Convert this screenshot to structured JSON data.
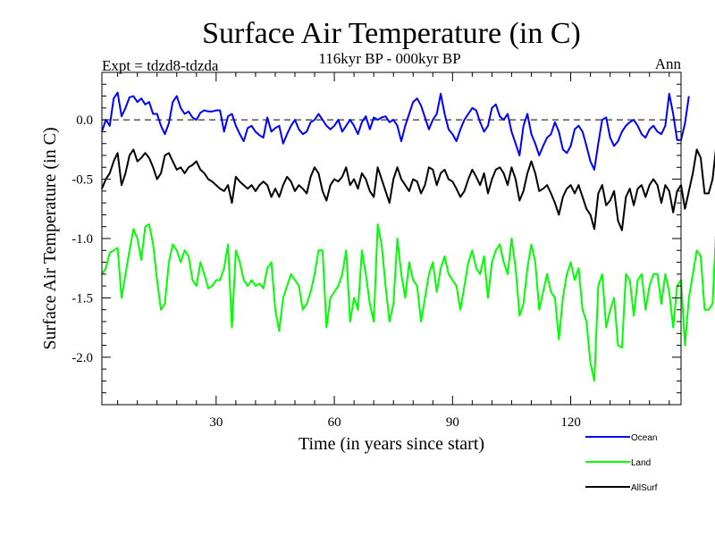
{
  "chart_data": {
    "type": "line",
    "title": "Surface Air Temperature (in C)",
    "subtitle": "116kyr BP - 000kyr BP",
    "experiment": "Expt = tdzd8-tdzda",
    "season": "Ann",
    "xlabel": "Time (in years since start)",
    "ylabel": "Surface Air Temperature (in C)",
    "xlim": [
      1,
      148
    ],
    "ylim": [
      -2.4,
      0.4
    ],
    "xticks": [
      30,
      60,
      90,
      120
    ],
    "yticks": [
      0.0,
      -0.5,
      -1.0,
      -1.5,
      -2.0
    ],
    "xtick_labels": [
      "30",
      "60",
      "90",
      "120"
    ],
    "ytick_labels": [
      "0.0",
      "-0.5",
      "-1.0",
      "-1.5",
      "-2.0"
    ],
    "reference_line": 0.0,
    "x_start": 1,
    "x_step": 1,
    "series": [
      {
        "name": "Ocean",
        "color": "#0000ff",
        "values": [
          -0.1,
          0.0,
          -0.05,
          0.18,
          0.23,
          0.03,
          0.1,
          0.19,
          0.2,
          0.15,
          0.18,
          0.13,
          0.15,
          0.05,
          0.05,
          -0.05,
          -0.12,
          -0.03,
          0.15,
          0.2,
          0.1,
          0.05,
          0.07,
          0.02,
          0.0,
          0.06,
          0.08,
          0.07,
          0.07,
          0.08,
          0.08,
          -0.1,
          0.03,
          0.05,
          -0.05,
          -0.12,
          -0.18,
          -0.07,
          -0.05,
          -0.1,
          -0.13,
          -0.15,
          0.02,
          -0.1,
          -0.07,
          -0.05,
          -0.2,
          -0.12,
          -0.05,
          0.0,
          -0.08,
          -0.12,
          -0.1,
          -0.02,
          0.0,
          0.05,
          0.0,
          -0.05,
          -0.08,
          -0.05,
          0.0,
          -0.1,
          -0.05,
          0.0,
          -0.05,
          -0.12,
          -0.02,
          0.03,
          -0.08,
          0.02,
          0.0,
          0.02,
          0.03,
          -0.02,
          0.0,
          -0.05,
          -0.18,
          -0.05,
          0.05,
          0.15,
          0.18,
          0.12,
          0.02,
          -0.08,
          0.0,
          0.05,
          0.22,
          0.05,
          -0.08,
          -0.12,
          -0.18,
          -0.08,
          0.0,
          0.05,
          0.1,
          0.08,
          -0.02,
          -0.1,
          -0.05,
          0.1,
          0.13,
          0.03,
          0.0,
          0.05,
          -0.1,
          -0.2,
          -0.3,
          -0.05,
          0.05,
          -0.12,
          -0.2,
          -0.3,
          -0.22,
          -0.15,
          -0.12,
          -0.02,
          -0.1,
          -0.25,
          -0.28,
          -0.22,
          -0.08,
          -0.05,
          -0.1,
          -0.22,
          -0.35,
          -0.42,
          -0.2,
          0.0,
          0.02,
          -0.15,
          -0.22,
          -0.18,
          -0.1,
          -0.05,
          -0.02,
          0.0,
          -0.05,
          -0.12,
          -0.15,
          -0.08,
          -0.05,
          -0.1,
          -0.12,
          -0.05,
          0.22,
          0.05,
          -0.17,
          -0.17,
          -0.03,
          0.2
        ]
      },
      {
        "name": "Land",
        "color": "#00ff00",
        "values": [
          -1.3,
          -1.25,
          -1.12,
          -1.1,
          -1.08,
          -1.5,
          -1.3,
          -1.1,
          -0.92,
          -1.0,
          -1.18,
          -0.9,
          -0.88,
          -1.05,
          -1.35,
          -1.6,
          -1.55,
          -1.2,
          -1.05,
          -1.1,
          -1.2,
          -1.1,
          -1.15,
          -1.35,
          -1.4,
          -1.2,
          -1.3,
          -1.42,
          -1.4,
          -1.35,
          -1.35,
          -1.25,
          -1.05,
          -1.75,
          -1.1,
          -1.2,
          -1.35,
          -1.4,
          -1.35,
          -1.4,
          -1.38,
          -1.42,
          -1.25,
          -1.2,
          -1.6,
          -1.78,
          -1.5,
          -1.4,
          -1.3,
          -1.35,
          -1.4,
          -1.6,
          -1.55,
          -1.45,
          -1.3,
          -1.1,
          -1.1,
          -1.75,
          -1.5,
          -1.45,
          -1.4,
          -1.3,
          -1.1,
          -1.7,
          -1.5,
          -1.6,
          -1.1,
          -1.3,
          -1.55,
          -1.7,
          -0.88,
          -1.05,
          -1.4,
          -1.7,
          -1.55,
          -1.0,
          -1.3,
          -1.5,
          -1.2,
          -1.35,
          -1.4,
          -1.7,
          -1.5,
          -1.3,
          -1.2,
          -1.45,
          -1.25,
          -1.15,
          -1.3,
          -1.35,
          -1.4,
          -1.6,
          -1.4,
          -1.2,
          -1.1,
          -1.25,
          -1.3,
          -1.15,
          -1.5,
          -1.2,
          -1.1,
          -1.05,
          -1.2,
          -1.3,
          -1.0,
          -1.25,
          -1.65,
          -1.55,
          -1.25,
          -1.05,
          -1.2,
          -1.6,
          -1.45,
          -1.3,
          -1.45,
          -1.5,
          -1.85,
          -1.5,
          -1.3,
          -1.2,
          -1.35,
          -1.25,
          -1.6,
          -1.7,
          -2.05,
          -2.2,
          -1.4,
          -1.3,
          -1.75,
          -1.6,
          -1.5,
          -1.9,
          -1.92,
          -1.3,
          -1.35,
          -1.65,
          -1.35,
          -1.3,
          -1.6,
          -1.4,
          -1.3,
          -1.3,
          -1.55,
          -1.3,
          -1.45,
          -1.75,
          -1.4,
          -1.35,
          -1.9,
          -1.5,
          -1.3,
          -1.1,
          -1.15,
          -1.6,
          -1.6,
          -1.55,
          -0.85
        ]
      },
      {
        "name": "AllSurf",
        "color": "#000000",
        "values": [
          -0.58,
          -0.5,
          -0.45,
          -0.35,
          -0.28,
          -0.55,
          -0.45,
          -0.3,
          -0.25,
          -0.35,
          -0.32,
          -0.28,
          -0.32,
          -0.4,
          -0.5,
          -0.45,
          -0.3,
          -0.28,
          -0.35,
          -0.42,
          -0.4,
          -0.45,
          -0.4,
          -0.38,
          -0.35,
          -0.42,
          -0.45,
          -0.5,
          -0.52,
          -0.55,
          -0.58,
          -0.6,
          -0.55,
          -0.7,
          -0.48,
          -0.52,
          -0.55,
          -0.58,
          -0.55,
          -0.6,
          -0.55,
          -0.52,
          -0.55,
          -0.65,
          -0.58,
          -0.65,
          -0.55,
          -0.48,
          -0.52,
          -0.6,
          -0.55,
          -0.58,
          -0.62,
          -0.48,
          -0.4,
          -0.45,
          -0.6,
          -0.68,
          -0.55,
          -0.5,
          -0.52,
          -0.48,
          -0.4,
          -0.55,
          -0.5,
          -0.58,
          -0.45,
          -0.5,
          -0.6,
          -0.65,
          -0.4,
          -0.5,
          -0.6,
          -0.7,
          -0.5,
          -0.4,
          -0.5,
          -0.55,
          -0.6,
          -0.5,
          -0.52,
          -0.62,
          -0.55,
          -0.4,
          -0.42,
          -0.55,
          -0.45,
          -0.42,
          -0.5,
          -0.52,
          -0.58,
          -0.65,
          -0.6,
          -0.5,
          -0.42,
          -0.48,
          -0.55,
          -0.45,
          -0.62,
          -0.5,
          -0.42,
          -0.4,
          -0.45,
          -0.55,
          -0.4,
          -0.5,
          -0.68,
          -0.6,
          -0.45,
          -0.35,
          -0.45,
          -0.6,
          -0.58,
          -0.55,
          -0.62,
          -0.7,
          -0.8,
          -0.65,
          -0.58,
          -0.55,
          -0.62,
          -0.55,
          -0.65,
          -0.75,
          -0.8,
          -0.92,
          -0.62,
          -0.55,
          -0.72,
          -0.68,
          -0.6,
          -0.85,
          -0.93,
          -0.65,
          -0.58,
          -0.72,
          -0.58,
          -0.55,
          -0.65,
          -0.55,
          -0.5,
          -0.55,
          -0.7,
          -0.55,
          -0.6,
          -0.78,
          -0.6,
          -0.55,
          -0.75,
          -0.6,
          -0.45,
          -0.25,
          -0.32,
          -0.62,
          -0.62,
          -0.5,
          -0.2
        ]
      }
    ],
    "legend_position": "bottom-right"
  }
}
